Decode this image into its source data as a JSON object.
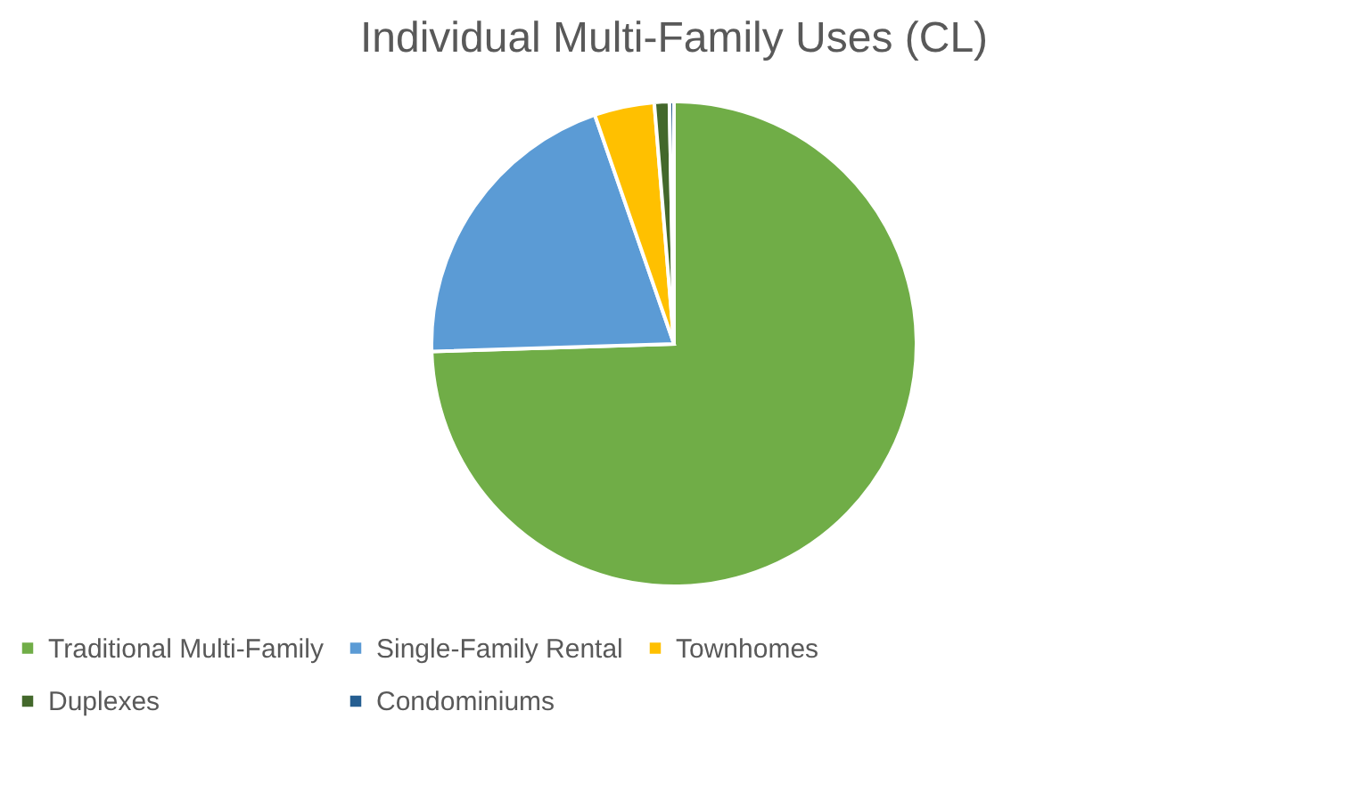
{
  "chart_data": {
    "type": "pie",
    "title": "Individual Multi-Family Uses (CL)",
    "categories": [
      "Traditional Multi-Family",
      "Single-Family Rental",
      "Townhomes",
      "Duplexes",
      "Condominiums"
    ],
    "values": [
      74.5,
      20.2,
      4.0,
      1.0,
      0.3
    ],
    "colors": [
      "#70ad47",
      "#5b9bd5",
      "#ffc000",
      "#43682b",
      "#255e91"
    ],
    "legend": "bottom"
  }
}
